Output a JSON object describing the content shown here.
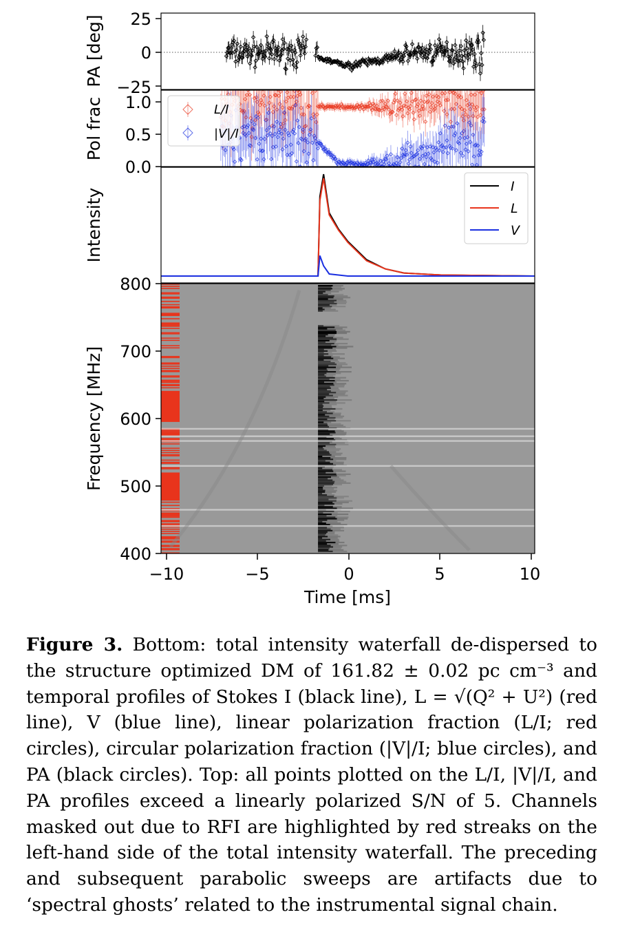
{
  "figure": {
    "xaxis": {
      "label": "Time [ms]",
      "ticks": [
        "−10",
        "−5",
        "0",
        "5",
        "10"
      ],
      "range": [
        -10,
        10
      ]
    },
    "pa_panel": {
      "ylabel": "PA [deg]",
      "ticks": [
        "25",
        "0",
        "−25"
      ],
      "ylim": [
        -25,
        25
      ]
    },
    "pol_panel": {
      "ylabel": "Pol frac",
      "ticks": [
        "1.0",
        "0.5",
        "0.0"
      ],
      "ylim": [
        0,
        1.05
      ],
      "legend": [
        {
          "label": "L/I",
          "color": "#e8341c"
        },
        {
          "label": "|V|/I",
          "color": "#1a2fe0"
        }
      ]
    },
    "intensity_panel": {
      "ylabel": "Intensity",
      "legend": [
        {
          "label": "I",
          "color": "#000000"
        },
        {
          "label": "L",
          "color": "#e8341c"
        },
        {
          "label": "V",
          "color": "#1a2fe0"
        }
      ]
    },
    "waterfall_panel": {
      "ylabel": "Frequency [MHz]",
      "ticks": [
        "800",
        "700",
        "600",
        "500",
        "400"
      ],
      "ylim": [
        400,
        800
      ],
      "rfi_mask_color": "#e8341c",
      "background": "#999999"
    }
  },
  "chart_data": {
    "type": "line",
    "x_range": [
      -10,
      10
    ],
    "series": [
      {
        "name": "I",
        "x": [
          -10,
          -2,
          -1.6,
          -1.5,
          -1.3,
          -1.0,
          -0.5,
          0,
          1,
          2,
          3,
          5,
          10
        ],
        "values": [
          0,
          0,
          0,
          0.78,
          1.0,
          0.62,
          0.46,
          0.34,
          0.16,
          0.07,
          0.03,
          0.01,
          0
        ]
      },
      {
        "name": "L",
        "x": [
          -10,
          -2,
          -1.6,
          -1.5,
          -1.3,
          -1.0,
          -0.5,
          0,
          1,
          2,
          3,
          5,
          10
        ],
        "values": [
          0,
          0,
          0,
          0.74,
          0.96,
          0.6,
          0.45,
          0.33,
          0.15,
          0.07,
          0.03,
          0.01,
          0
        ]
      },
      {
        "name": "V",
        "x": [
          -10,
          -2,
          -1.6,
          -1.5,
          -1.3,
          -1.0,
          -0.5,
          0,
          1,
          10
        ],
        "values": [
          0,
          0,
          0,
          0.2,
          0.1,
          0.02,
          0.01,
          0,
          0,
          0
        ]
      }
    ]
  },
  "caption": {
    "label": "Figure 3.",
    "text": " Bottom: total intensity waterfall de-dispersed to the structure optimized DM of 161.82 ± 0.02 pc cm⁻³ and temporal profiles of Stokes I (black line), L = √(Q² + U²) (red line), V (blue line), linear polarization fraction (L/I; red circles), circular polarization fraction (|V|/I; blue circles), and PA (black circles). Top: all points plotted on the L/I, |V|/I, and PA profiles exceed a linearly polarized S/N of 5. Channels masked out due to RFI are highlighted by red streaks on the left-hand side of the total intensity waterfall. The preceding and subsequent parabolic sweeps are artifacts due to ‘spectral ghosts’ related to the instrumental signal chain."
  }
}
